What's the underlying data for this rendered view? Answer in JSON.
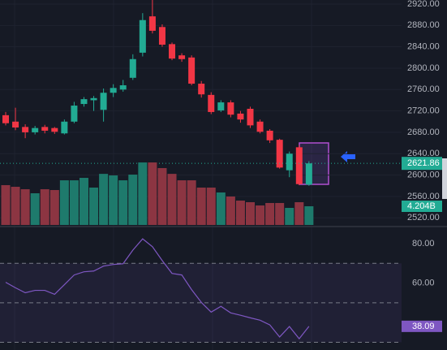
{
  "chart_data": [
    {
      "type": "candlestick",
      "open": [
        2712,
        2700,
        2690,
        2680,
        2690,
        2688,
        2678,
        2700,
        2733,
        2740,
        2722,
        2754,
        2760,
        2782,
        2829,
        2897,
        2877,
        2845,
        2824,
        2820,
        2771,
        2750,
        2721,
        2736,
        2715,
        2724,
        2700,
        2683,
        2666,
        2609,
        2652,
        2582
      ],
      "high": [
        2718,
        2726,
        2695,
        2692,
        2694,
        2690,
        2704,
        2737,
        2746,
        2748,
        2762,
        2770,
        2778,
        2826,
        2903,
        2932,
        2882,
        2848,
        2828,
        2824,
        2776,
        2755,
        2740,
        2740,
        2720,
        2728,
        2704,
        2686,
        2668,
        2644,
        2656,
        2626
      ],
      "low": [
        2693,
        2684,
        2669,
        2676,
        2678,
        2677,
        2676,
        2697,
        2728,
        2720,
        2700,
        2746,
        2756,
        2778,
        2822,
        2865,
        2840,
        2815,
        2812,
        2768,
        2745,
        2714,
        2718,
        2708,
        2698,
        2688,
        2678,
        2660,
        2612,
        2596,
        2581,
        2580
      ],
      "close": [
        2697,
        2689,
        2680,
        2688,
        2683,
        2681,
        2700,
        2730,
        2742,
        2744,
        2754,
        2763,
        2768,
        2817,
        2890,
        2870,
        2844,
        2818,
        2817,
        2771,
        2751,
        2718,
        2736,
        2713,
        2704,
        2693,
        2681,
        2665,
        2614,
        2640,
        2583,
        2621.86
      ],
      "up_color": "#22ab94",
      "down_color": "#f23645",
      "ylim": [
        2503.6,
        2927.6
      ],
      "yticks": [
        {
          "value": 2920,
          "label": "2920.00"
        },
        {
          "value": 2880,
          "label": "2880.00"
        },
        {
          "value": 2840,
          "label": "2840.00"
        },
        {
          "value": 2800,
          "label": "2800.00"
        },
        {
          "value": 2760,
          "label": "2760.00"
        },
        {
          "value": 2720,
          "label": "2720.00"
        },
        {
          "value": 2680,
          "label": "2680.00"
        },
        {
          "value": 2640,
          "label": "2640.00"
        },
        {
          "value": 2600,
          "label": "2600.00"
        },
        {
          "value": 2560,
          "label": "2560.00"
        },
        {
          "value": 2520,
          "label": "2520.00"
        }
      ]
    },
    {
      "type": "bar",
      "values": [
        8.96,
        8.59,
        8.04,
        7.13,
        8.04,
        7.86,
        10.05,
        10.05,
        10.6,
        8.41,
        11.5,
        11.15,
        10.05,
        11.33,
        14.07,
        14.07,
        12.8,
        11.5,
        10.05,
        10.05,
        8.41,
        8.41,
        7.31,
        6.4,
        5.48,
        5.12,
        4.39,
        4.94,
        4.94,
        3.84,
        5.12,
        4.204
      ],
      "last_label": "4.204B",
      "up_color": "#1e7a6c",
      "down_color": "#8c3542",
      "ylim": [
        0,
        20
      ]
    },
    {
      "type": "line",
      "values": [
        60.4,
        57.6,
        55.1,
        56.3,
        56.3,
        54.3,
        59.2,
        64.1,
        65.7,
        66.1,
        68.6,
        69.4,
        69.8,
        76.7,
        82.4,
        78.4,
        71.4,
        64.9,
        64.1,
        56.7,
        50.2,
        45.3,
        48.2,
        44.9,
        43.7,
        42.4,
        41.2,
        38.8,
        32.7,
        38.0,
        31.8,
        38.09
      ],
      "color": "#7e57c2",
      "ylim": [
        26.1,
        88.2
      ],
      "yticks": [
        {
          "value": 80,
          "label": "80.00"
        },
        {
          "value": 60,
          "label": "60.00"
        }
      ],
      "levels": [
        70,
        50,
        30
      ]
    }
  ]
}
